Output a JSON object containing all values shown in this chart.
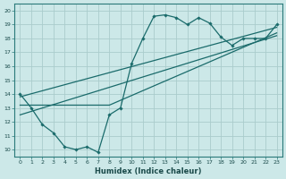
{
  "title": "",
  "xlabel": "Humidex (Indice chaleur)",
  "bg_color": "#cce8e8",
  "grid_color": "#aacccc",
  "line_color": "#1a6b6b",
  "xlim": [
    -0.5,
    23.5
  ],
  "ylim": [
    9.5,
    20.5
  ],
  "xticks": [
    0,
    1,
    2,
    3,
    4,
    5,
    6,
    7,
    8,
    9,
    10,
    11,
    12,
    13,
    14,
    15,
    16,
    17,
    18,
    19,
    20,
    21,
    22,
    23
  ],
  "yticks": [
    10,
    11,
    12,
    13,
    14,
    15,
    16,
    17,
    18,
    19,
    20
  ],
  "curve1_x": [
    0,
    1,
    2,
    3,
    4,
    5,
    6,
    7,
    8,
    9,
    10,
    11,
    12,
    13,
    14,
    15,
    16,
    17,
    18,
    19,
    20,
    21,
    22,
    23
  ],
  "curve1_y": [
    14.0,
    13.0,
    11.8,
    11.2,
    10.2,
    10.0,
    10.2,
    9.8,
    12.5,
    13.0,
    16.2,
    18.0,
    19.6,
    19.7,
    19.5,
    19.0,
    19.5,
    19.1,
    18.1,
    17.5,
    18.0,
    18.0,
    18.0,
    19.0
  ],
  "line2_x": [
    0,
    23
  ],
  "line2_y": [
    13.8,
    18.8
  ],
  "line3_x": [
    0,
    8,
    23
  ],
  "line3_y": [
    13.2,
    13.2,
    18.4
  ],
  "line4_x": [
    0,
    23
  ],
  "line4_y": [
    12.5,
    18.2
  ]
}
